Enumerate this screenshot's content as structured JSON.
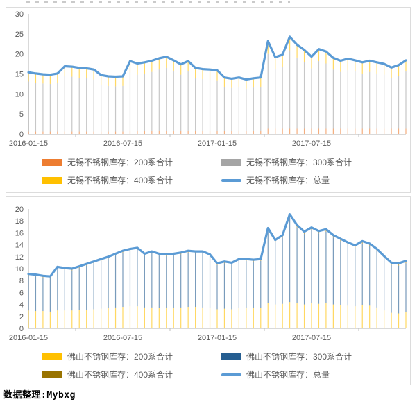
{
  "footer": {
    "source_note": "数据整理:Mybxg"
  },
  "chart_data": [
    {
      "type": "bar",
      "subtype": "stacked-bars-with-total-line",
      "x_tick_labels": [
        "2016-01-15",
        "2016-07-15",
        "2017-01-15",
        "2017-07-15"
      ],
      "x_label_indices": [
        0,
        13,
        26,
        39
      ],
      "n_points": 53,
      "ylim": [
        0,
        30
      ],
      "y_ticks": [
        30,
        25,
        20,
        15,
        10,
        5,
        0
      ],
      "grid": "off",
      "legend_position": "bottom",
      "series": [
        {
          "name": "无锡不锈钢库存：200系合计",
          "type": "bar",
          "color": "#ED7D31",
          "values": [
            0.6,
            0.6,
            0.6,
            0.6,
            0.6,
            0.6,
            0.6,
            0.6,
            0.6,
            0.6,
            0.6,
            0.6,
            0.6,
            0.6,
            0.7,
            0.7,
            0.7,
            0.7,
            0.7,
            0.7,
            0.7,
            0.7,
            0.7,
            0.7,
            0.7,
            0.7,
            0.7,
            0.7,
            0.7,
            0.7,
            0.7,
            0.7,
            0.7,
            1.3,
            1.3,
            1.3,
            1.3,
            1.3,
            1.3,
            1.3,
            1.3,
            1.3,
            1.3,
            1.3,
            1.3,
            1.3,
            1.3,
            1.3,
            1.3,
            1.3,
            1.3,
            1.3,
            1.3
          ]
        },
        {
          "name": "无锡不锈钢库存：300系合计",
          "type": "bar",
          "color": "#A5A5A5",
          "values": [
            12.5,
            12.2,
            12.0,
            11.9,
            12.2,
            13.8,
            13.7,
            13.4,
            13.3,
            13.0,
            11.7,
            11.4,
            11.3,
            11.4,
            14.7,
            14.1,
            14.4,
            14.8,
            15.4,
            15.8,
            15.1,
            14.1,
            14.9,
            13.3,
            13.0,
            12.9,
            12.7,
            11.1,
            10.8,
            11.1,
            10.6,
            10.9,
            11.1,
            18.7,
            14.9,
            15.5,
            19.6,
            17.8,
            16.7,
            15.1,
            16.9,
            16.3,
            14.8,
            14.2,
            14.6,
            14.3,
            13.8,
            14.2,
            13.8,
            13.5,
            12.7,
            13.2,
            14.3
          ]
        },
        {
          "name": "无锡不锈钢库存：400系合计",
          "type": "bar",
          "color": "#FFC000",
          "values": [
            2.3,
            2.3,
            2.3,
            2.3,
            2.3,
            2.5,
            2.5,
            2.5,
            2.5,
            2.5,
            2.4,
            2.4,
            2.4,
            2.4,
            2.8,
            2.8,
            2.8,
            2.8,
            2.8,
            2.8,
            2.6,
            2.6,
            2.6,
            2.5,
            2.5,
            2.5,
            2.5,
            2.3,
            2.3,
            2.3,
            2.3,
            2.3,
            2.3,
            3.2,
            3.0,
            3.0,
            3.4,
            3.2,
            3.0,
            2.9,
            3.0,
            3.0,
            2.9,
            2.8,
            2.9,
            2.8,
            2.8,
            2.8,
            2.8,
            2.7,
            2.6,
            2.7,
            2.8
          ]
        },
        {
          "name": "无锡不锈钢库存：总量",
          "type": "line",
          "color": "#5B9BD5",
          "values": [
            15.4,
            15.1,
            14.9,
            14.8,
            15.1,
            16.9,
            16.8,
            16.5,
            16.4,
            16.1,
            14.7,
            14.4,
            14.3,
            14.4,
            18.2,
            17.6,
            17.9,
            18.3,
            18.9,
            19.3,
            18.4,
            17.4,
            18.2,
            16.5,
            16.2,
            16.1,
            15.9,
            14.1,
            13.8,
            14.1,
            13.6,
            13.9,
            14.1,
            23.2,
            19.2,
            19.8,
            24.3,
            22.3,
            21.0,
            19.3,
            21.2,
            20.6,
            19.0,
            18.3,
            18.8,
            18.4,
            17.9,
            18.3,
            17.9,
            17.5,
            16.6,
            17.2,
            18.4
          ]
        }
      ]
    },
    {
      "type": "bar",
      "subtype": "stacked-bars-with-total-line",
      "x_tick_labels": [
        "2016-01-15",
        "2016-07-15",
        "2017-01-15",
        "2017-07-15"
      ],
      "x_label_indices": [
        0,
        13,
        26,
        39
      ],
      "n_points": 53,
      "ylim": [
        0,
        20
      ],
      "y_ticks": [
        20,
        18,
        16,
        14,
        12,
        10,
        8,
        6,
        4,
        2,
        0
      ],
      "grid": "off",
      "legend_position": "bottom",
      "series": [
        {
          "name": "佛山不锈钢库存：200系合计",
          "type": "bar",
          "color": "#FFC000",
          "values": [
            3.0,
            2.9,
            2.9,
            2.8,
            3.0,
            3.0,
            3.0,
            3.1,
            3.1,
            3.2,
            3.3,
            3.4,
            3.5,
            3.6,
            3.7,
            3.7,
            3.5,
            3.5,
            3.4,
            3.4,
            3.4,
            3.5,
            3.6,
            3.6,
            3.5,
            3.4,
            3.2,
            3.3,
            3.2,
            3.4,
            3.4,
            3.4,
            3.4,
            4.3,
            4.0,
            4.1,
            4.4,
            4.2,
            4.0,
            4.2,
            4.1,
            4.2,
            4.0,
            3.9,
            3.8,
            3.7,
            3.9,
            3.8,
            3.5,
            3.0,
            2.6,
            2.5,
            2.7
          ]
        },
        {
          "name": "佛山不锈钢库存：300系合计",
          "type": "bar",
          "color": "#255E91",
          "values": [
            5.8,
            5.8,
            5.6,
            5.6,
            7.0,
            6.8,
            6.7,
            7.0,
            7.4,
            7.7,
            8.0,
            8.3,
            8.7,
            9.1,
            9.3,
            9.5,
            8.7,
            9.1,
            8.8,
            8.7,
            8.8,
            8.9,
            9.1,
            9.0,
            9.1,
            8.7,
            7.4,
            7.6,
            7.5,
            7.9,
            7.9,
            7.8,
            7.9,
            12.1,
            10.4,
            11.1,
            14.3,
            12.7,
            11.8,
            12.3,
            11.8,
            12.0,
            11.2,
            10.7,
            10.2,
            9.8,
            10.3,
            10.0,
            9.4,
            8.7,
            8.0,
            8.0,
            8.2
          ]
        },
        {
          "name": "佛山不锈钢库存：400系合计",
          "type": "bar",
          "color": "#997300",
          "values": [
            0.3,
            0.3,
            0.3,
            0.3,
            0.3,
            0.3,
            0.3,
            0.3,
            0.3,
            0.3,
            0.3,
            0.3,
            0.3,
            0.3,
            0.3,
            0.3,
            0.3,
            0.3,
            0.3,
            0.3,
            0.3,
            0.3,
            0.3,
            0.3,
            0.3,
            0.3,
            0.3,
            0.3,
            0.3,
            0.3,
            0.3,
            0.3,
            0.3,
            0.4,
            0.4,
            0.4,
            0.4,
            0.4,
            0.4,
            0.4,
            0.4,
            0.4,
            0.4,
            0.4,
            0.4,
            0.4,
            0.4,
            0.4,
            0.4,
            0.4,
            0.4,
            0.4,
            0.4
          ]
        },
        {
          "name": "佛山不锈钢库存：总量",
          "type": "line",
          "color": "#5B9BD5",
          "values": [
            9.1,
            9.0,
            8.8,
            8.7,
            10.3,
            10.1,
            10.0,
            10.4,
            10.8,
            11.2,
            11.6,
            12.0,
            12.5,
            13.0,
            13.3,
            13.5,
            12.5,
            12.9,
            12.5,
            12.4,
            12.5,
            12.7,
            13.0,
            12.9,
            12.9,
            12.4,
            10.9,
            11.2,
            11.0,
            11.6,
            11.6,
            11.5,
            11.6,
            16.8,
            14.8,
            15.6,
            19.1,
            17.3,
            16.2,
            16.9,
            16.3,
            16.6,
            15.6,
            15.0,
            14.4,
            13.9,
            14.6,
            14.2,
            13.3,
            12.1,
            11.0,
            10.9,
            11.3
          ]
        }
      ]
    }
  ]
}
